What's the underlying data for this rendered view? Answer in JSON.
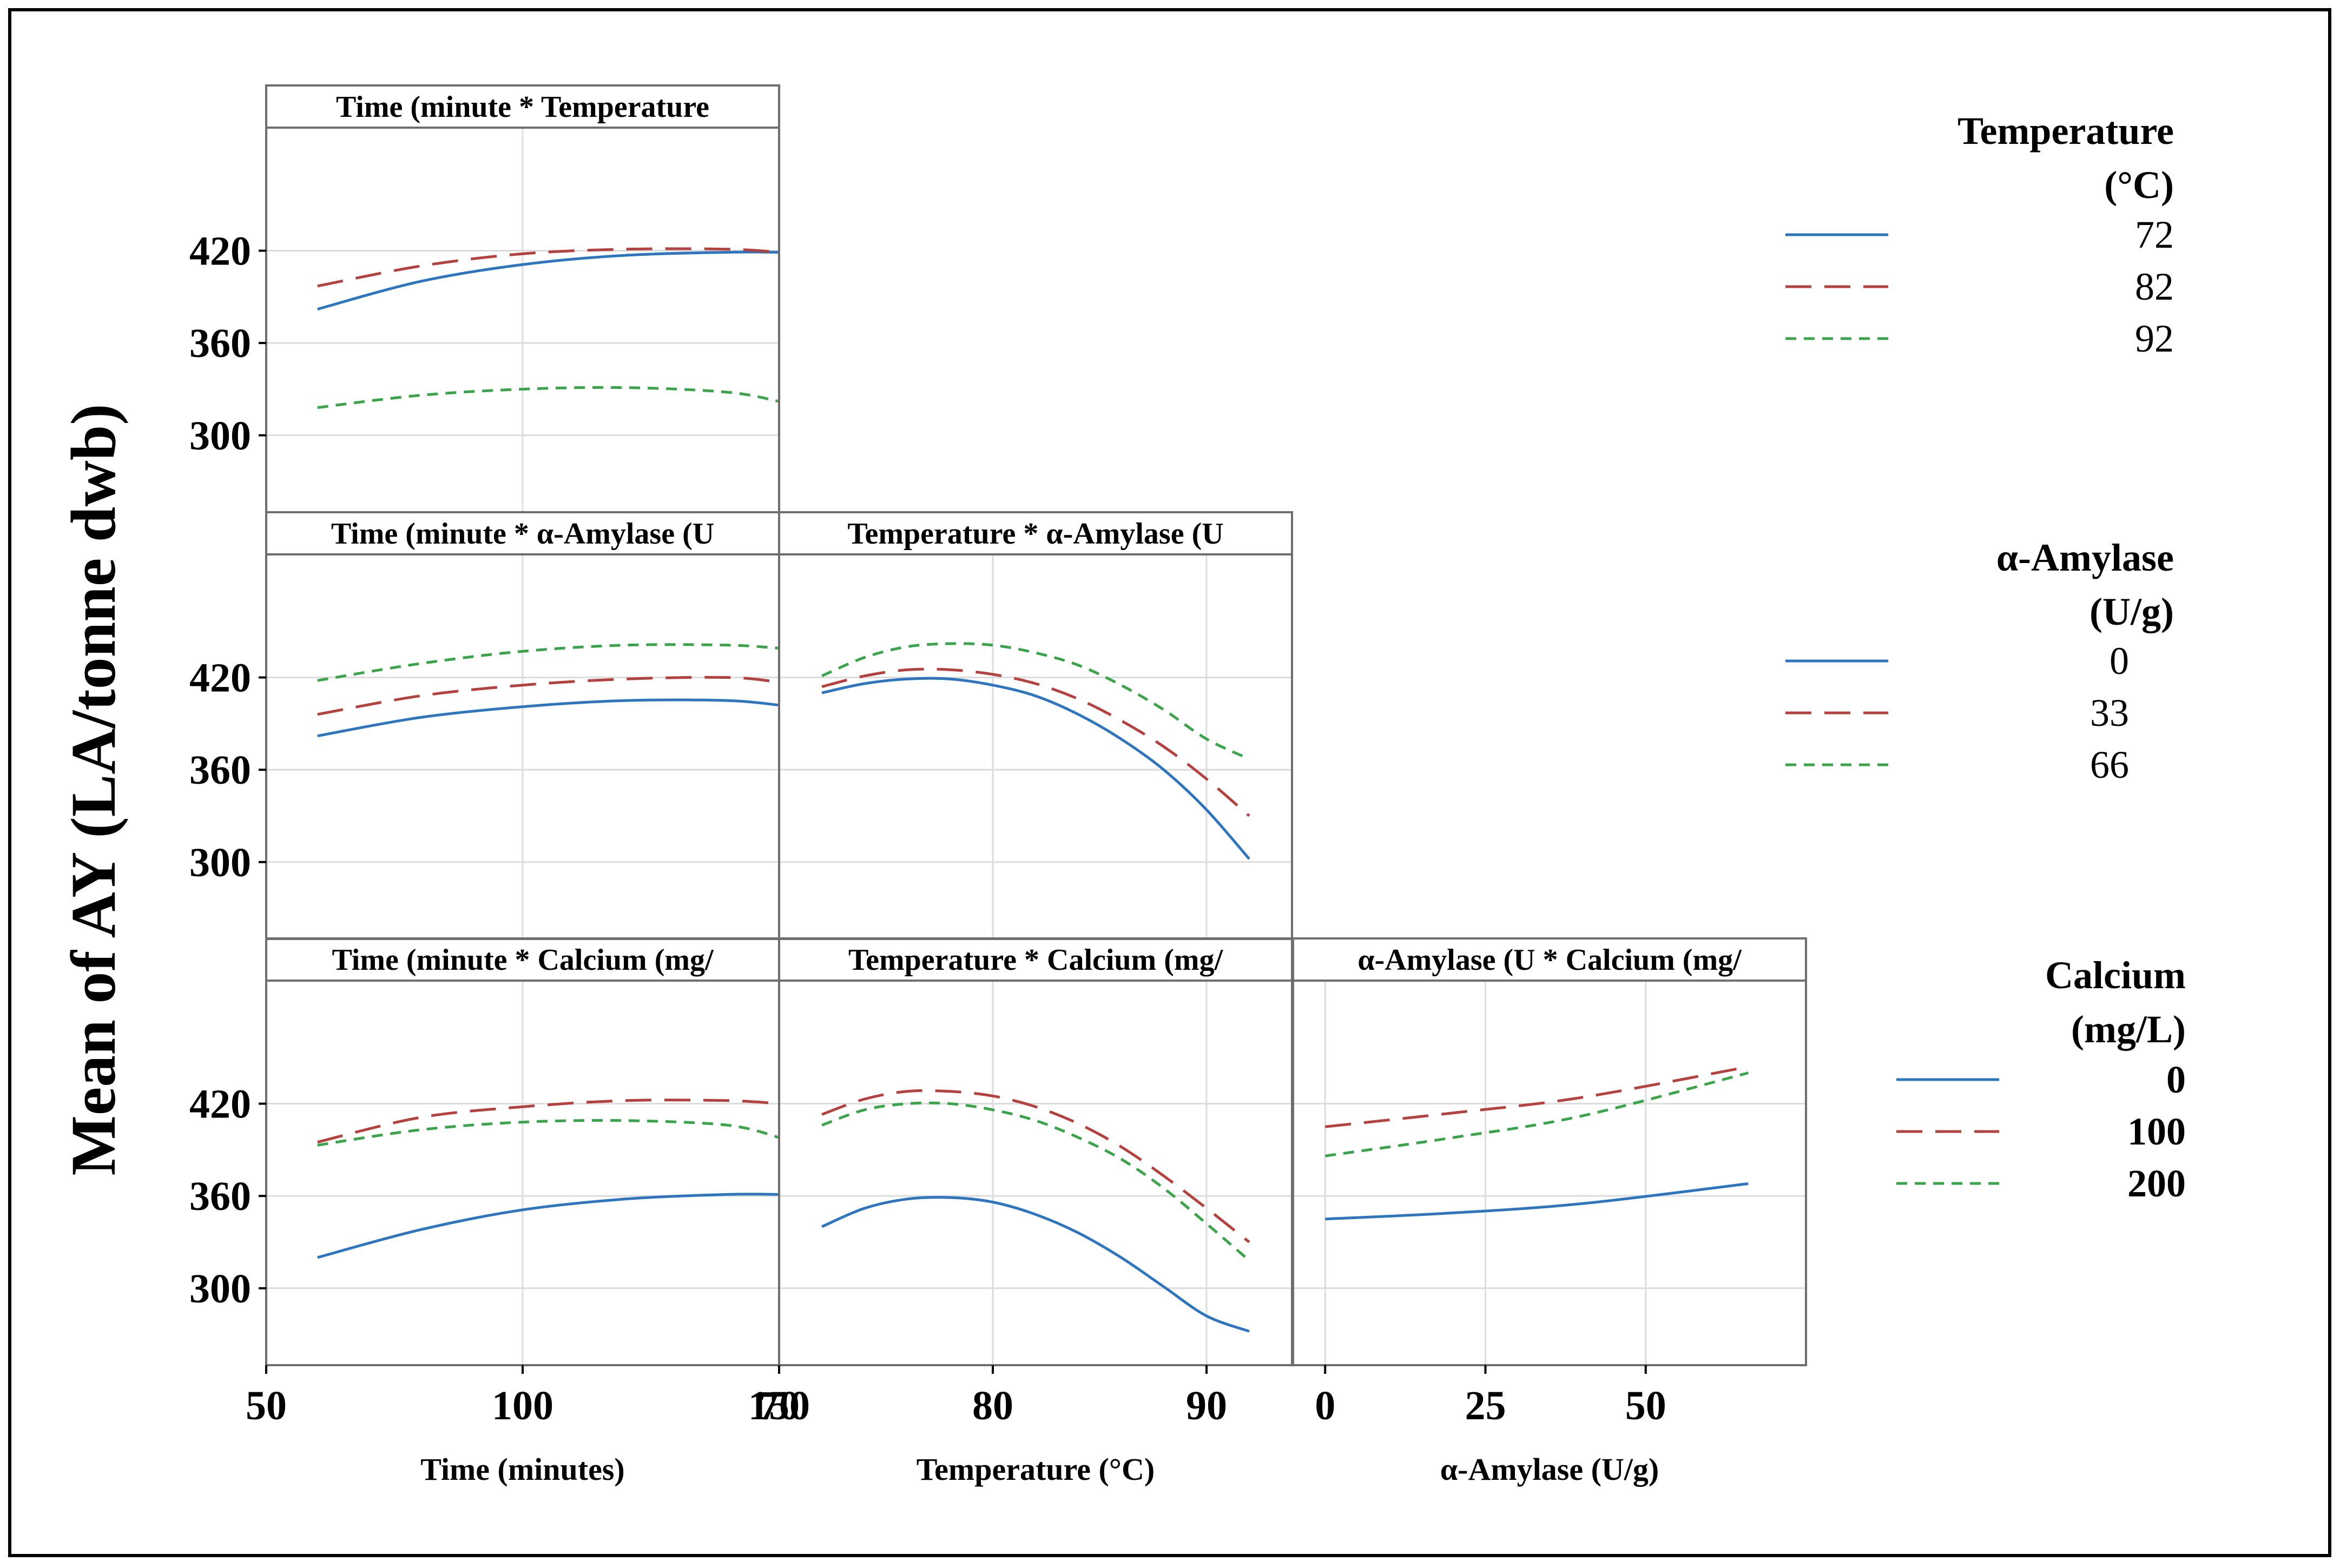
{
  "colors": {
    "blue": "#2E75C0",
    "red": "#B5413E",
    "green": "#3BA34A",
    "frame": "#6E6E6E",
    "grid": "#DCDCDC",
    "border": "#000000"
  },
  "chart_data": {
    "type": "line",
    "title": "",
    "ylabel": "Mean of AY (LA/tonne dwb)",
    "grid": true,
    "factors": [
      {
        "key": "time",
        "xlabel": "Time (minutes)",
        "xlim": [
          50,
          150
        ],
        "ticks": [
          50,
          100,
          150
        ],
        "tick_labels": [
          "50",
          "100",
          "150"
        ]
      },
      {
        "key": "temp",
        "xlabel": "Temperature (°C)",
        "xlim": [
          70,
          94
        ],
        "ticks": [
          70,
          80,
          90
        ],
        "tick_labels": [
          "70",
          "80",
          "90"
        ]
      },
      {
        "key": "amyl",
        "xlabel": "α-Amylase (U/g)",
        "xlim": [
          -5,
          75
        ],
        "ticks": [
          0,
          25,
          50
        ],
        "tick_labels": [
          "0",
          "25",
          "50"
        ]
      }
    ],
    "rows": [
      {
        "ylim": [
          250,
          500
        ],
        "ticks": [
          300,
          360,
          420
        ],
        "tick_labels": [
          "300",
          "360",
          "420"
        ]
      },
      {
        "ylim": [
          250,
          500
        ],
        "ticks": [
          300,
          360,
          420
        ],
        "tick_labels": [
          "300",
          "360",
          "420"
        ]
      },
      {
        "ylim": [
          250,
          500
        ],
        "ticks": [
          300,
          360,
          420
        ],
        "tick_labels": [
          "300",
          "360",
          "420"
        ]
      }
    ],
    "panels": [
      {
        "row": 0,
        "col": 0,
        "title": "Time (minute * Temperature",
        "x": [
          60,
          80,
          100,
          120,
          140,
          150
        ],
        "series": [
          {
            "name": "72",
            "values": [
              382,
              400,
              411,
              417,
              419,
              419
            ]
          },
          {
            "name": "82",
            "values": [
              397,
              410,
              418,
              421,
              421,
              419
            ]
          },
          {
            "name": "92",
            "values": [
              318,
              326,
              330,
              331,
              328,
              322
            ]
          }
        ]
      },
      {
        "row": 1,
        "col": 0,
        "title": "Time (minute * α-Amylase (U",
        "x": [
          60,
          80,
          100,
          120,
          140,
          150
        ],
        "series": [
          {
            "name": "0",
            "values": [
              382,
              394,
              401,
              405,
              405,
              402
            ]
          },
          {
            "name": "33",
            "values": [
              396,
              408,
              415,
              419,
              420,
              417
            ]
          },
          {
            "name": "66",
            "values": [
              418,
              429,
              437,
              441,
              441,
              439
            ]
          }
        ]
      },
      {
        "row": 1,
        "col": 1,
        "title": "Temperature * α-Amylase (U",
        "x": [
          72,
          74,
          76,
          78,
          80,
          82,
          84,
          86,
          88,
          90,
          92
        ],
        "series": [
          {
            "name": "0",
            "values": [
              410,
              416,
              419,
              419,
              415,
              408,
              396,
              380,
              360,
              334,
              302
            ]
          },
          {
            "name": "33",
            "values": [
              414,
              421,
              425,
              425,
              422,
              416,
              406,
              392,
              375,
              354,
              330
            ]
          },
          {
            "name": "66",
            "values": [
              421,
              433,
              440,
              442,
              441,
              436,
              428,
              415,
              399,
              380,
              367
            ]
          }
        ]
      },
      {
        "row": 2,
        "col": 0,
        "title": "Time (minute * Calcium (mg/",
        "x": [
          60,
          80,
          100,
          120,
          140,
          150
        ],
        "series": [
          {
            "name": "0",
            "values": [
              320,
              338,
              351,
              358,
              361,
              361
            ]
          },
          {
            "name": "100",
            "values": [
              395,
              411,
              418,
              422,
              422,
              420
            ]
          },
          {
            "name": "200",
            "values": [
              393,
              403,
              408,
              409,
              406,
              398
            ]
          }
        ]
      },
      {
        "row": 2,
        "col": 1,
        "title": "Temperature * Calcium (mg/",
        "x": [
          72,
          74,
          76,
          78,
          80,
          82,
          84,
          86,
          88,
          90,
          92
        ],
        "series": [
          {
            "name": "0",
            "values": [
              340,
              352,
              358,
              359,
              356,
              348,
              336,
              320,
              301,
              282,
              272
            ]
          },
          {
            "name": "100",
            "values": [
              413,
              423,
              428,
              428,
              425,
              418,
              407,
              392,
              373,
              352,
              330
            ]
          },
          {
            "name": "200",
            "values": [
              406,
              416,
              420,
              420,
              416,
              409,
              398,
              384,
              365,
              342,
              318
            ]
          }
        ]
      },
      {
        "row": 2,
        "col": 2,
        "title": "α-Amylase (U * Calcium (mg/",
        "x": [
          0,
          20,
          40,
          66
        ],
        "series": [
          {
            "name": "0",
            "values": [
              345,
              349,
              355,
              368
            ]
          },
          {
            "name": "100",
            "values": [
              405,
              414,
              424,
              444
            ]
          },
          {
            "name": "200",
            "values": [
              386,
              398,
              412,
              440
            ]
          }
        ]
      }
    ],
    "legends": [
      {
        "title_lines": [
          "Temperature",
          "(°C)"
        ],
        "entries": [
          "72",
          "82",
          "92"
        ]
      },
      {
        "title_lines": [
          "α-Amylase",
          "(U/g)"
        ],
        "entries": [
          "0",
          "33",
          "66"
        ]
      },
      {
        "title_lines": [
          "Calcium",
          "(mg/L)"
        ],
        "entries": [
          "0",
          "100",
          "200"
        ]
      }
    ]
  }
}
